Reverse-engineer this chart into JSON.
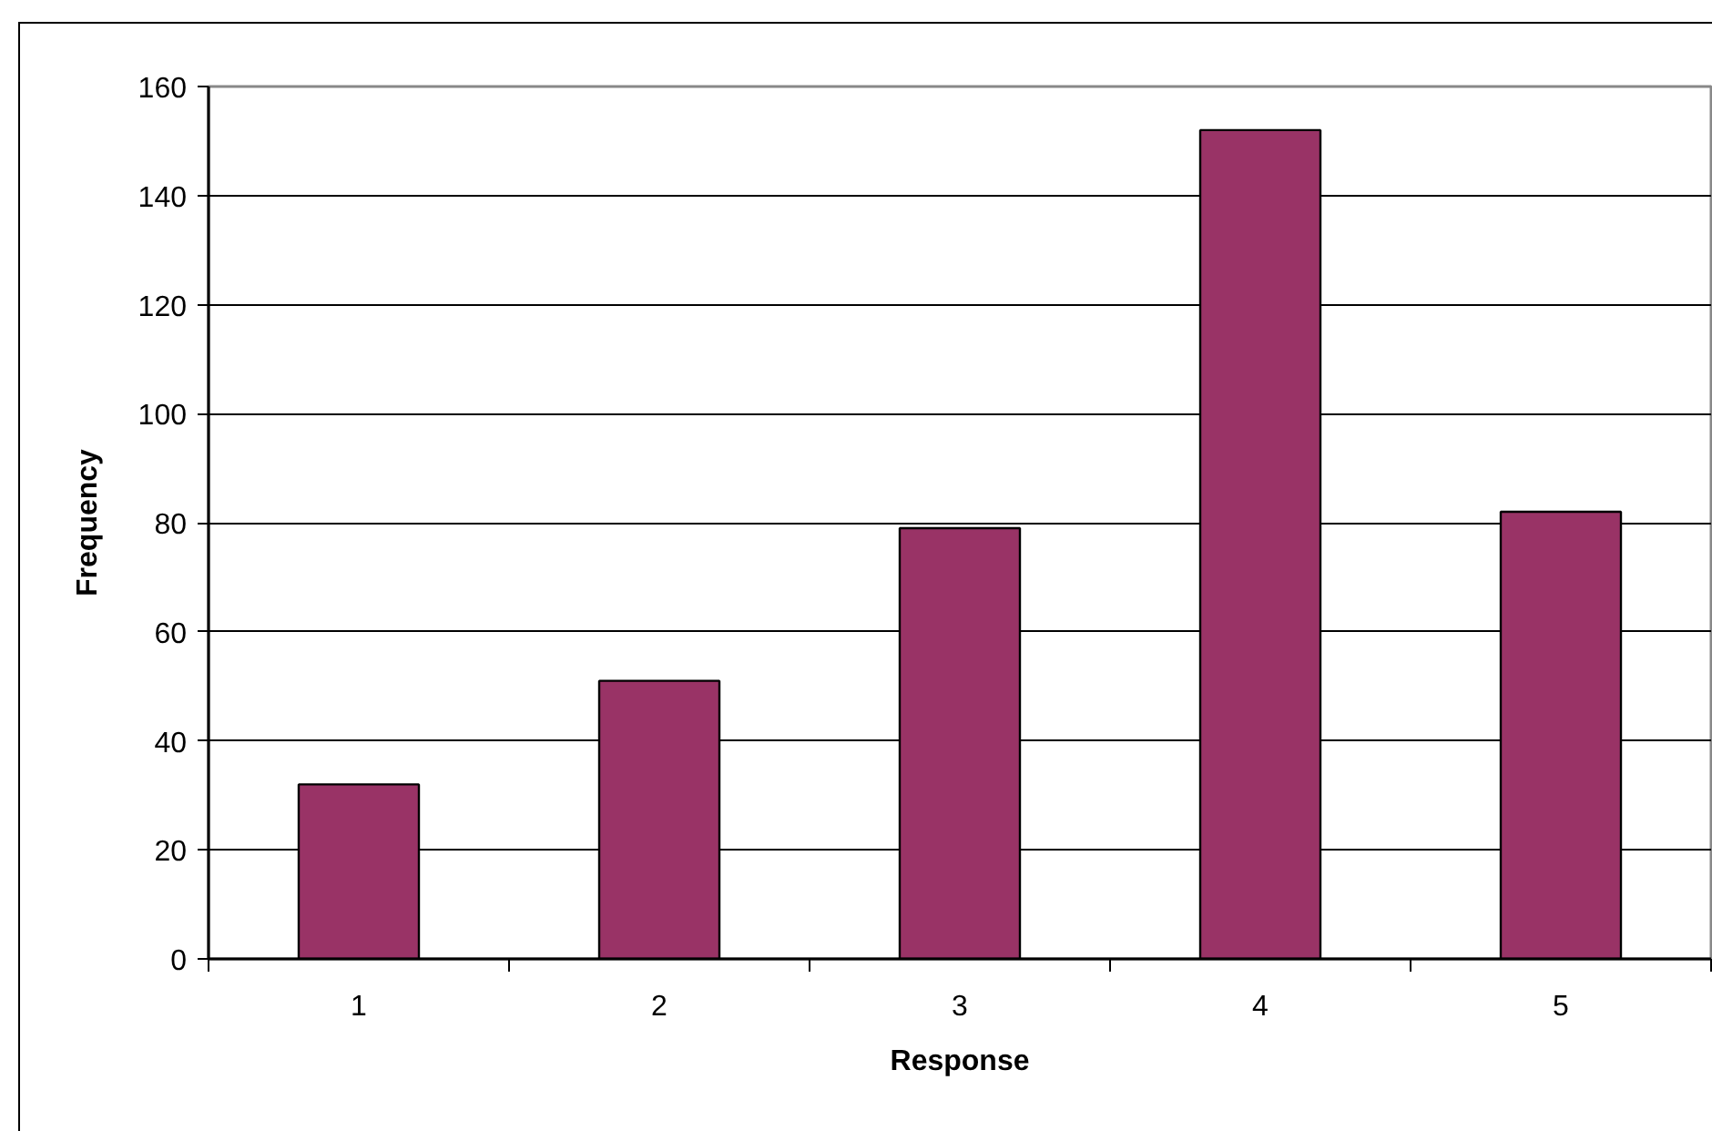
{
  "chart_data": {
    "type": "bar",
    "xlabel": "Response",
    "ylabel": "Frequency",
    "categories": [
      "1",
      "2",
      "3",
      "4",
      "5"
    ],
    "values": [
      32,
      51,
      79,
      152,
      82
    ],
    "color": "#993366",
    "ylim": [
      0,
      160
    ],
    "yticks": [
      0,
      20,
      40,
      60,
      80,
      100,
      120,
      140,
      160
    ],
    "grid": "y"
  }
}
